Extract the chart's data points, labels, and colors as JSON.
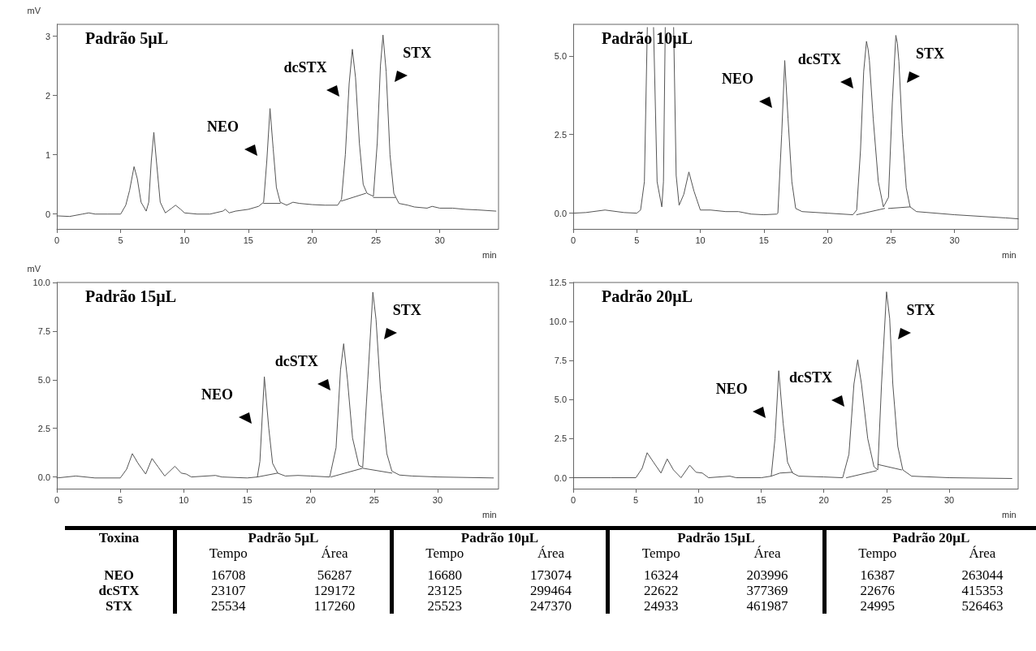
{
  "chart_data": [
    {
      "type": "line",
      "title": "Padrão 5µL",
      "xlabel": "min",
      "ylabel": "mV",
      "xlim": [
        0,
        34.6
      ],
      "xticks": [
        0,
        5,
        10,
        15,
        20,
        25,
        30
      ],
      "ylim": [
        -0.25,
        3.2
      ],
      "yticks": [
        0,
        1,
        2,
        3
      ],
      "marker": "none",
      "line_style": "solid",
      "annotations": [
        {
          "text": "NEO",
          "x": 16.7,
          "y": 1.78
        },
        {
          "text": "dcSTX",
          "x": 23.15,
          "y": 2.78
        },
        {
          "text": "STX",
          "x": 25.55,
          "y": 3.02
        }
      ],
      "series": [
        {
          "color": "#555555",
          "x": [
            0,
            1,
            2,
            2.5,
            3,
            4,
            5,
            5.4,
            5.7,
            6.05,
            6.3,
            6.6,
            7,
            7.2,
            7.4,
            7.6,
            7.8,
            8.1,
            8.5,
            9,
            9.3,
            9.7,
            10,
            11,
            12,
            13,
            13.2,
            13.5,
            14,
            15,
            15.8,
            16.2,
            16.45,
            16.7,
            16.95,
            17.2,
            17.5,
            18,
            18.5,
            19,
            20,
            21,
            22,
            22.3,
            22.6,
            22.9,
            23.15,
            23.4,
            23.7,
            24,
            24.3,
            24.8,
            25.1,
            25.35,
            25.55,
            25.8,
            26.1,
            26.4,
            26.8,
            27.5,
            28,
            29,
            29.4,
            30,
            31,
            32,
            33,
            34.4
          ],
          "values": [
            -0.03,
            -0.04,
            0,
            0.02,
            0,
            0,
            0,
            0.15,
            0.4,
            0.8,
            0.6,
            0.2,
            0.05,
            0.2,
            0.9,
            1.38,
            0.9,
            0.2,
            0.02,
            0.1,
            0.15,
            0.08,
            0.02,
            0,
            0,
            0.05,
            0.08,
            0.02,
            0.05,
            0.08,
            0.13,
            0.2,
            0.9,
            1.78,
            1.1,
            0.45,
            0.2,
            0.15,
            0.2,
            0.18,
            0.16,
            0.15,
            0.15,
            0.25,
            1,
            2.2,
            2.78,
            2.3,
            1.2,
            0.5,
            0.35,
            0.3,
            1.2,
            2.5,
            3.02,
            2.4,
            1,
            0.35,
            0.18,
            0.15,
            0.12,
            0.1,
            0.13,
            0.1,
            0.1,
            0.08,
            0.07,
            0.05
          ]
        },
        {
          "color": "#555555",
          "x": [
            16.2,
            17.5,
            17.6,
            22.3,
            24.2,
            24.5,
            24.8,
            26.5
          ],
          "values": [
            0.18,
            0.18,
            null,
            0.22,
            0.35,
            null,
            0.28,
            0.28
          ]
        }
      ]
    },
    {
      "type": "line",
      "title": "Padrão 10µL",
      "xlabel": "min",
      "xlim": [
        0,
        35
      ],
      "xticks": [
        0,
        5,
        10,
        15,
        20,
        25,
        30
      ],
      "ylim": [
        -0.5,
        6
      ],
      "yticks": [
        {
          "value": 0,
          "label": "0.0"
        },
        {
          "value": 2.5,
          "label": "2.5"
        },
        {
          "value": 5,
          "label": "5.0"
        }
      ],
      "marker": "none",
      "line_style": "solid",
      "annotations": [
        {
          "text": "NEO",
          "x": 16.64,
          "y": 4.85
        },
        {
          "text": "dcSTX",
          "x": 23.07,
          "y": 5.46
        },
        {
          "text": "STX",
          "x": 25.38,
          "y": 5.65
        }
      ],
      "series": [
        {
          "color": "#555555",
          "x": [
            0,
            1,
            2.5,
            4,
            5,
            5.3,
            5.6,
            5.83,
            6.1,
            6.32,
            6.6,
            6.97,
            7.1,
            7.24,
            7.55,
            7.9,
            8.1,
            8.33,
            8.7,
            9.1,
            9.5,
            10,
            10.8,
            12,
            13,
            14,
            15,
            16,
            16.1,
            16.4,
            16.64,
            16.9,
            17.2,
            17.5,
            18,
            20,
            22,
            22.3,
            22.6,
            22.85,
            23.07,
            23.2,
            23.3,
            23.6,
            24,
            24.4,
            24.8,
            25.1,
            25.38,
            25.5,
            25.62,
            25.9,
            26.2,
            26.5,
            27,
            30,
            34,
            35
          ],
          "values": [
            0,
            0.02,
            0.1,
            0.02,
            0,
            0.1,
            1,
            5.9,
            null,
            5.9,
            1,
            0.2,
            1,
            5.9,
            null,
            5.9,
            1.2,
            0.25,
            0.6,
            1.31,
            0.7,
            0.1,
            0.1,
            0.05,
            0.05,
            -0.03,
            -0.05,
            -0.03,
            0,
            2.5,
            4.85,
            3,
            1,
            0.15,
            0.05,
            0,
            -0.05,
            0.1,
            2,
            4.5,
            5.46,
            5.2,
            4.85,
            3,
            1,
            0.2,
            0.5,
            3.5,
            5.65,
            5.4,
            4.83,
            2.5,
            0.8,
            0.2,
            0.05,
            -0.05,
            -0.15,
            -0.18
          ]
        },
        {
          "color": "#555555",
          "x": [
            22.3,
            24.5,
            24.6,
            24.8,
            26.5
          ],
          "values": [
            -0.05,
            0.15,
            null,
            0.15,
            0.2
          ]
        }
      ]
    },
    {
      "type": "line",
      "title": "Padrão 15µL",
      "xlabel": "min",
      "ylabel": "mV",
      "xlim": [
        0,
        34.8
      ],
      "xticks": [
        0,
        5,
        10,
        15,
        20,
        25,
        30
      ],
      "ylim": [
        -0.6,
        10
      ],
      "yticks": [
        {
          "value": 0,
          "label": "0.0"
        },
        {
          "value": 2.5,
          "label": "2.5"
        },
        {
          "value": 5,
          "label": "5.0"
        },
        {
          "value": 7.5,
          "label": "7.5"
        },
        {
          "value": 10,
          "label": "10.0"
        }
      ],
      "marker": "none",
      "line_style": "solid",
      "annotations": [
        {
          "text": "NEO",
          "x": 16.35,
          "y": 5.15
        },
        {
          "text": "dcSTX",
          "x": 22.6,
          "y": 6.85
        },
        {
          "text": "STX",
          "x": 24.9,
          "y": 9.5
        }
      ],
      "series": [
        {
          "color": "#555555",
          "x": [
            0,
            1.5,
            3,
            5,
            5.5,
            5.95,
            6.4,
            7,
            7.5,
            8,
            8.5,
            9.3,
            9.8,
            10.2,
            10.6,
            12.5,
            13,
            15,
            15.8,
            16,
            16.35,
            16.7,
            17,
            17.4,
            18,
            19,
            20,
            21.5,
            22,
            22.35,
            22.6,
            22.9,
            23.3,
            23.8,
            24.1,
            24.5,
            24.9,
            25.15,
            25.5,
            26,
            26.4,
            27,
            28,
            30,
            34.4
          ],
          "values": [
            -0.05,
            0.05,
            -0.05,
            -0.05,
            0.4,
            1.2,
            0.7,
            0.15,
            0.95,
            0.5,
            0.05,
            0.55,
            0.2,
            0.15,
            0,
            0.08,
            0,
            -0.05,
            0,
            0.8,
            5.15,
            2.5,
            0.7,
            0.2,
            0.05,
            0.08,
            0.05,
            0,
            1.5,
            5.5,
            6.85,
            5,
            2,
            0.6,
            0.5,
            5,
            9.5,
            8.1,
            4.5,
            1.2,
            0.3,
            0.1,
            0.05,
            0,
            -0.05
          ]
        },
        {
          "color": "#555555",
          "x": [
            15.8,
            17.4,
            17.5,
            21.6,
            24.1,
            26.4
          ],
          "values": [
            0,
            0.2,
            null,
            0,
            0.45,
            0.2
          ]
        }
      ]
    },
    {
      "type": "line",
      "title": "Padrão 20µL",
      "xlabel": "min",
      "xlim": [
        0,
        35.5
      ],
      "xticks": [
        0,
        5,
        10,
        15,
        20,
        25,
        30
      ],
      "ylim": [
        -0.7,
        12.5
      ],
      "yticks": [
        {
          "value": 0,
          "label": "0.0"
        },
        {
          "value": 2.5,
          "label": "2.5"
        },
        {
          "value": 5,
          "label": "5.0"
        },
        {
          "value": 7.5,
          "label": "7.5"
        },
        {
          "value": 10,
          "label": "10.0"
        },
        {
          "value": 12.5,
          "label": "12.5"
        }
      ],
      "marker": "none",
      "line_style": "solid",
      "annotations": [
        {
          "text": "NEO",
          "x": 16.4,
          "y": 6.85
        },
        {
          "text": "dcSTX",
          "x": 22.7,
          "y": 7.55
        },
        {
          "text": "STX",
          "x": 25,
          "y": 11.9
        }
      ],
      "series": [
        {
          "color": "#555555",
          "x": [
            0,
            3,
            5,
            5.5,
            5.9,
            6.4,
            7,
            7.5,
            8,
            8.6,
            9.3,
            9.8,
            10.3,
            10.8,
            12.5,
            13,
            15,
            15.8,
            16.1,
            16.4,
            16.75,
            17.1,
            17.5,
            18,
            20,
            21.5,
            22,
            22.4,
            22.7,
            23,
            23.5,
            24,
            24.3,
            24.6,
            25,
            25.25,
            25.5,
            25.9,
            26.3,
            27,
            30,
            35
          ],
          "values": [
            0,
            0,
            0,
            0.6,
            1.6,
            1,
            0.3,
            1.2,
            0.5,
            0,
            0.8,
            0.35,
            0.3,
            0,
            0.1,
            0,
            0,
            0.1,
            2.5,
            6.85,
            3.5,
            1,
            0.3,
            0.1,
            0.05,
            0,
            1.5,
            6,
            7.55,
            6,
            2.5,
            0.7,
            0.5,
            6,
            11.9,
            10.2,
            6,
            2,
            0.5,
            0.1,
            0,
            -0.05
          ]
        },
        {
          "color": "#555555",
          "x": [
            15.8,
            16.5,
            17.5,
            17.6,
            21.8,
            24.2,
            24.25,
            24.3,
            26.2
          ],
          "values": [
            0.1,
            0.3,
            0.35,
            null,
            0,
            0.45,
            null,
            0.85,
            0.5
          ]
        }
      ]
    },
    {
      "type": "heatmap",
      "data_labels": true,
      "annotations": [
        "Toxina",
        "Padrão 5µL",
        "Padrão 10µL",
        "Padrão 15µL",
        "Padrão 20µL"
      ],
      "categories": [
        "Tempo",
        "Área",
        "Tempo",
        "Área",
        "Tempo",
        "Área",
        "Tempo",
        "Área"
      ],
      "y_categories": [
        "NEO",
        "dcSTX",
        "STX"
      ],
      "cells": [
        [
          16708,
          56287,
          16680,
          173074,
          16324,
          203996,
          16387,
          263044
        ],
        [
          23107,
          129172,
          23125,
          299464,
          22622,
          377369,
          22676,
          415353
        ],
        [
          25534,
          117260,
          25523,
          247370,
          24933,
          461987,
          24995,
          526463
        ]
      ]
    }
  ]
}
